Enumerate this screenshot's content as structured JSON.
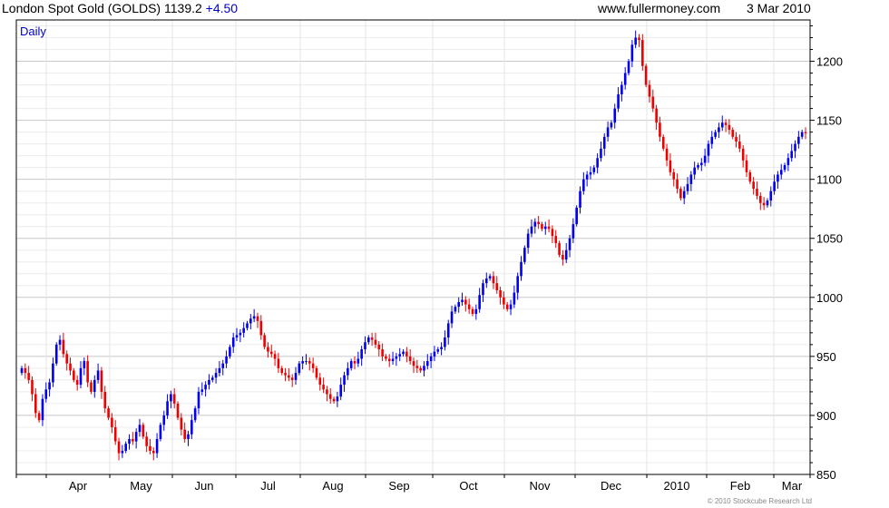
{
  "header": {
    "instrument": "London Spot Gold (GOLDS)",
    "last": "1139.2",
    "change": "+4.50",
    "website": "www.fullermoney.com",
    "date": "3 Mar 2010"
  },
  "period_label": "Daily",
  "copyright": "© 2010 Stockcube Research Ltd",
  "colors": {
    "up": "#0000ee",
    "down": "#ee0000",
    "grid": "#d4d4d4",
    "axis": "#000000"
  },
  "chart_data": {
    "type": "candlestick",
    "title": "London Spot Gold (GOLDS)",
    "frequency": "Daily",
    "ylim": [
      850,
      1235
    ],
    "y_ticks": [
      850,
      900,
      950,
      1000,
      1050,
      1100,
      1150,
      1200
    ],
    "y_axis_side": "right",
    "x_ticks": [
      "Apr",
      "May",
      "Jun",
      "Jul",
      "Aug",
      "Sep",
      "Oct",
      "Nov",
      "Dec",
      "2010",
      "Feb",
      "Mar"
    ],
    "grid": true,
    "series": [
      {
        "values": [
          940,
          936,
          930,
          918,
          902,
          896,
          914,
          922,
          928,
          944,
          960,
          964,
          952,
          944,
          938,
          930,
          926,
          940,
          946,
          928,
          920,
          930,
          938,
          920,
          906,
          898,
          890,
          878,
          868,
          870,
          876,
          880,
          878,
          886,
          892,
          882,
          874,
          870,
          868,
          880,
          892,
          900,
          912,
          918,
          910,
          898,
          888,
          880,
          884,
          896,
          906,
          920,
          922,
          926,
          930,
          932,
          936,
          940,
          944,
          950,
          958,
          966,
          968,
          970,
          974,
          978,
          982,
          984,
          980,
          968,
          958,
          954,
          952,
          948,
          940,
          936,
          934,
          932,
          930,
          936,
          944,
          946,
          946,
          944,
          940,
          932,
          926,
          922,
          918,
          914,
          912,
          916,
          926,
          934,
          940,
          946,
          944,
          948,
          956,
          962,
          966,
          964,
          960,
          956,
          950,
          948,
          946,
          948,
          950,
          952,
          954,
          950,
          946,
          942,
          940,
          938,
          942,
          946,
          950,
          954,
          956,
          958,
          966,
          978,
          988,
          992,
          996,
          998,
          994,
          990,
          986,
          990,
          1002,
          1012,
          1016,
          1018,
          1012,
          1006,
          1000,
          994,
          990,
          994,
          1004,
          1018,
          1030,
          1042,
          1054,
          1060,
          1064,
          1062,
          1058,
          1060,
          1058,
          1052,
          1046,
          1036,
          1032,
          1040,
          1050,
          1062,
          1076,
          1090,
          1100,
          1104,
          1106,
          1110,
          1118,
          1126,
          1136,
          1144,
          1148,
          1160,
          1172,
          1180,
          1190,
          1200,
          1214,
          1220,
          1218,
          1196,
          1180,
          1170,
          1160,
          1148,
          1136,
          1126,
          1116,
          1106,
          1100,
          1092,
          1084,
          1090,
          1096,
          1104,
          1110,
          1112,
          1114,
          1120,
          1130,
          1136,
          1140,
          1144,
          1148,
          1146,
          1142,
          1136,
          1132,
          1126,
          1116,
          1106,
          1098,
          1092,
          1086,
          1080,
          1078,
          1082,
          1090,
          1098,
          1104,
          1108,
          1112,
          1118,
          1124,
          1130,
          1136,
          1140,
          1139
        ]
      }
    ]
  }
}
